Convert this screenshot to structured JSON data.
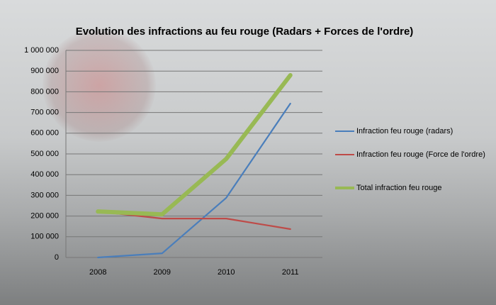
{
  "chart_data": {
    "type": "line",
    "title": "Evolution des infractions au feu rouge (Radars + Forces de l'ordre)",
    "categories": [
      "2008",
      "2009",
      "2010",
      "2011"
    ],
    "series": [
      {
        "name": "Infraction feu rouge (radars)",
        "color": "#4a7ebb",
        "values": [
          0,
          20000,
          288000,
          743000
        ]
      },
      {
        "name": "Infraction feu rouge (Force de l'ordre)",
        "color": "#be4b48",
        "values": [
          222000,
          188000,
          188000,
          137000
        ]
      },
      {
        "name": "Total infraction feu rouge",
        "color": "#98b954",
        "values": [
          222000,
          208000,
          476000,
          880000
        ]
      }
    ],
    "ylim": [
      0,
      1000000
    ],
    "yticks": [
      0,
      {
        "value": 100000,
        "label": "100 000"
      },
      {
        "value": 200000,
        "label": "200 000"
      },
      {
        "value": 300000,
        "label": "300 000"
      },
      {
        "value": 400000,
        "label": "400 000"
      },
      {
        "value": 500000,
        "label": "500 000"
      },
      {
        "value": 600000,
        "label": "600 000"
      },
      {
        "value": 700000,
        "label": "700 000"
      },
      {
        "value": 800000,
        "label": "800 000"
      },
      {
        "value": 900000,
        "label": "900 000"
      },
      {
        "value": 1000000,
        "label": "1 000 000"
      }
    ],
    "grid": true,
    "legend": "right"
  }
}
